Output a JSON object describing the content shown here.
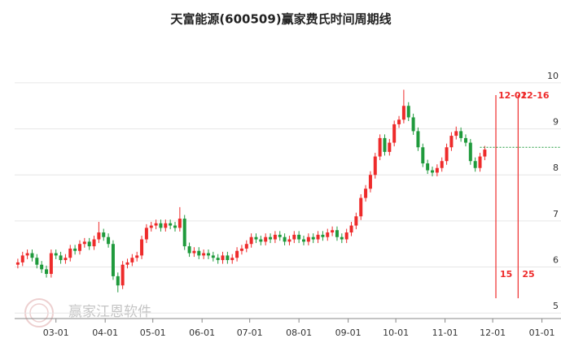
{
  "chart_data": {
    "type": "candlestick",
    "title": "天富能源(600509)赢家费氏时间周期线",
    "watermark": "赢家江恩软件",
    "up_color": "#ee2b2b",
    "down_color": "#1f9a3c",
    "x": [
      -24,
      -21,
      -18,
      -15,
      -12,
      -9,
      -6,
      -3,
      0,
      3,
      6,
      9,
      12,
      15,
      18,
      21,
      24,
      27,
      30,
      33,
      36,
      39,
      42,
      45,
      48,
      51,
      54,
      57,
      60,
      63,
      66,
      69,
      72,
      75,
      78,
      81,
      84,
      87,
      90,
      93,
      96,
      99,
      102,
      105,
      108,
      111,
      114,
      117,
      120,
      123,
      126,
      129,
      132,
      135,
      138,
      141,
      144,
      147,
      150,
      153,
      156,
      159,
      162,
      165,
      168,
      171,
      174,
      177,
      180,
      183,
      186,
      189,
      192,
      195,
      198,
      201,
      204,
      207,
      210,
      213,
      216,
      219,
      222,
      225,
      228,
      231,
      234,
      237,
      240,
      243,
      246,
      249,
      252,
      255,
      258,
      261,
      264,
      267,
      270
    ],
    "open": [
      6.05,
      6.1,
      6.25,
      6.3,
      6.2,
      6.05,
      5.95,
      5.85,
      6.3,
      6.25,
      6.15,
      6.2,
      6.4,
      6.35,
      6.5,
      6.55,
      6.45,
      6.6,
      6.75,
      6.65,
      6.5,
      5.8,
      5.6,
      6.05,
      6.1,
      6.2,
      6.25,
      6.6,
      6.85,
      6.9,
      6.95,
      6.85,
      6.95,
      6.9,
      6.85,
      7.05,
      6.45,
      6.3,
      6.35,
      6.25,
      6.3,
      6.25,
      6.2,
      6.15,
      6.25,
      6.15,
      6.2,
      6.35,
      6.4,
      6.5,
      6.65,
      6.6,
      6.55,
      6.65,
      6.6,
      6.7,
      6.65,
      6.55,
      6.6,
      6.7,
      6.6,
      6.55,
      6.65,
      6.6,
      6.7,
      6.65,
      6.75,
      6.8,
      6.65,
      6.6,
      6.75,
      6.9,
      7.1,
      7.5,
      7.7,
      8.0,
      8.4,
      8.8,
      8.5,
      8.7,
      9.1,
      9.2,
      9.5,
      9.25,
      8.95,
      8.6,
      8.25,
      8.1,
      8.05,
      8.15,
      8.3,
      8.6,
      8.85,
      8.95,
      8.8,
      8.7,
      8.3,
      8.15,
      8.4
    ],
    "high": [
      6.18,
      6.33,
      6.38,
      6.38,
      6.28,
      6.13,
      6.03,
      6.38,
      6.38,
      6.33,
      6.28,
      6.48,
      6.48,
      6.58,
      6.63,
      6.63,
      6.68,
      6.98,
      6.83,
      6.73,
      6.58,
      5.88,
      6.13,
      6.18,
      6.28,
      6.33,
      6.68,
      6.93,
      6.98,
      7.03,
      7.03,
      7.03,
      7.03,
      6.98,
      7.3,
      7.13,
      6.53,
      6.43,
      6.43,
      6.38,
      6.38,
      6.33,
      6.28,
      6.33,
      6.33,
      6.28,
      6.43,
      6.48,
      6.58,
      6.73,
      6.73,
      6.68,
      6.73,
      6.73,
      6.78,
      6.78,
      6.73,
      6.68,
      6.78,
      6.78,
      6.68,
      6.73,
      6.73,
      6.78,
      6.78,
      6.83,
      6.88,
      6.88,
      6.73,
      6.83,
      6.98,
      7.18,
      7.58,
      7.78,
      8.08,
      8.48,
      8.88,
      8.88,
      8.78,
      9.18,
      9.28,
      9.85,
      9.58,
      9.33,
      9.03,
      8.68,
      8.33,
      8.18,
      8.23,
      8.38,
      8.68,
      8.93,
      9.05,
      9.03,
      8.88,
      8.78,
      8.38,
      8.48,
      8.63
    ],
    "low": [
      5.97,
      6.02,
      6.17,
      6.12,
      5.97,
      5.87,
      5.77,
      5.77,
      6.17,
      6.07,
      6.07,
      6.12,
      6.27,
      6.27,
      6.42,
      6.37,
      6.37,
      6.52,
      6.57,
      6.42,
      5.72,
      5.45,
      5.52,
      5.97,
      6.02,
      6.12,
      6.17,
      6.52,
      6.77,
      6.82,
      6.77,
      6.77,
      6.82,
      6.77,
      6.77,
      6.37,
      6.22,
      6.22,
      6.17,
      6.17,
      6.17,
      6.12,
      6.07,
      6.07,
      6.07,
      6.07,
      6.12,
      6.27,
      6.32,
      6.42,
      6.52,
      6.47,
      6.47,
      6.52,
      6.52,
      6.57,
      6.47,
      6.47,
      6.52,
      6.52,
      6.47,
      6.47,
      6.52,
      6.52,
      6.57,
      6.57,
      6.67,
      6.57,
      6.52,
      6.52,
      6.67,
      6.82,
      7.02,
      7.42,
      7.62,
      7.92,
      8.32,
      8.42,
      8.42,
      8.62,
      9.02,
      9.12,
      9.17,
      8.87,
      8.52,
      8.17,
      8.02,
      7.97,
      7.97,
      8.07,
      8.22,
      8.52,
      8.77,
      8.72,
      8.62,
      8.22,
      8.07,
      8.07,
      8.32
    ],
    "close": [
      6.1,
      6.25,
      6.3,
      6.2,
      6.05,
      5.95,
      5.85,
      6.3,
      6.25,
      6.15,
      6.2,
      6.4,
      6.35,
      6.5,
      6.55,
      6.45,
      6.6,
      6.75,
      6.65,
      6.5,
      5.8,
      5.6,
      6.05,
      6.1,
      6.2,
      6.25,
      6.6,
      6.85,
      6.9,
      6.95,
      6.85,
      6.95,
      6.9,
      6.85,
      7.05,
      6.45,
      6.3,
      6.35,
      6.25,
      6.3,
      6.25,
      6.2,
      6.15,
      6.25,
      6.15,
      6.2,
      6.35,
      6.4,
      6.5,
      6.65,
      6.6,
      6.55,
      6.65,
      6.6,
      6.7,
      6.65,
      6.55,
      6.6,
      6.7,
      6.6,
      6.55,
      6.65,
      6.6,
      6.7,
      6.65,
      6.75,
      6.8,
      6.65,
      6.6,
      6.75,
      6.9,
      7.1,
      7.5,
      7.7,
      8.0,
      8.4,
      8.8,
      8.5,
      8.7,
      9.1,
      9.2,
      9.5,
      9.25,
      8.95,
      8.6,
      8.25,
      8.1,
      8.05,
      8.15,
      8.3,
      8.6,
      8.85,
      8.95,
      8.8,
      8.7,
      8.3,
      8.15,
      8.4,
      8.55
    ],
    "xlim": [
      -26,
      318
    ],
    "xticks": [
      {
        "value": 0,
        "label": "03-01"
      },
      {
        "value": 31,
        "label": "04-01"
      },
      {
        "value": 61,
        "label": "05-01"
      },
      {
        "value": 92,
        "label": "06-01"
      },
      {
        "value": 122,
        "label": "07-01"
      },
      {
        "value": 153,
        "label": "08-01"
      },
      {
        "value": 184,
        "label": "09-01"
      },
      {
        "value": 214,
        "label": "10-01"
      },
      {
        "value": 245,
        "label": "11-01"
      },
      {
        "value": 275,
        "label": "12-01"
      },
      {
        "value": 306,
        "label": "01-01"
      }
    ],
    "ylim": [
      4.88,
      10.74
    ],
    "yticks": [
      5,
      6,
      7,
      8,
      9,
      10
    ],
    "grid": true,
    "reference_line": {
      "value": 8.6,
      "x_start": 267,
      "color": "#1f9a3c"
    },
    "cycle_lines": [
      {
        "x": 277,
        "label": "12-02",
        "count": 15,
        "color": "#ee2b2b"
      },
      {
        "x": 291,
        "label": "12-16",
        "count": 25,
        "color": "#ee2b2b"
      }
    ]
  }
}
